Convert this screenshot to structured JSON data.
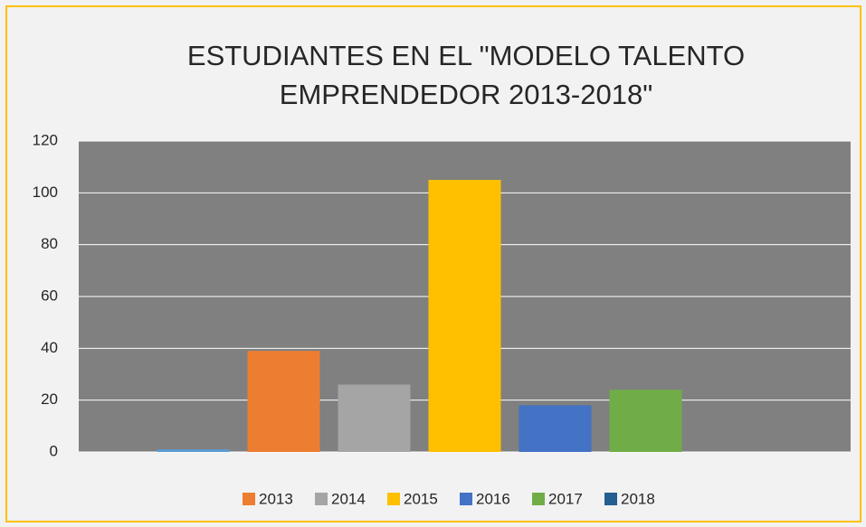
{
  "chart_data": {
    "type": "bar",
    "title": "ESTUDIANTES EN EL \"MODELO TALENTO EMPRENDEDOR 2013-2018\"",
    "series": [
      {
        "name": null,
        "color": "#5b9bd5",
        "values": [
          1
        ]
      },
      {
        "name": "2013",
        "color": "#ed7d31",
        "values": [
          39
        ]
      },
      {
        "name": "2014",
        "color": "#a5a5a5",
        "values": [
          26
        ]
      },
      {
        "name": "2015",
        "color": "#ffc000",
        "values": [
          105
        ]
      },
      {
        "name": "2016",
        "color": "#4472c4",
        "values": [
          18
        ]
      },
      {
        "name": "2017",
        "color": "#70ad47",
        "values": [
          24
        ]
      },
      {
        "name": "2018",
        "color": "#255e91",
        "values": [
          0
        ]
      }
    ],
    "ylim": [
      0,
      120
    ],
    "yticks": [
      0,
      20,
      40,
      60,
      80,
      100,
      120
    ],
    "grid": true,
    "legend": "bottom"
  }
}
